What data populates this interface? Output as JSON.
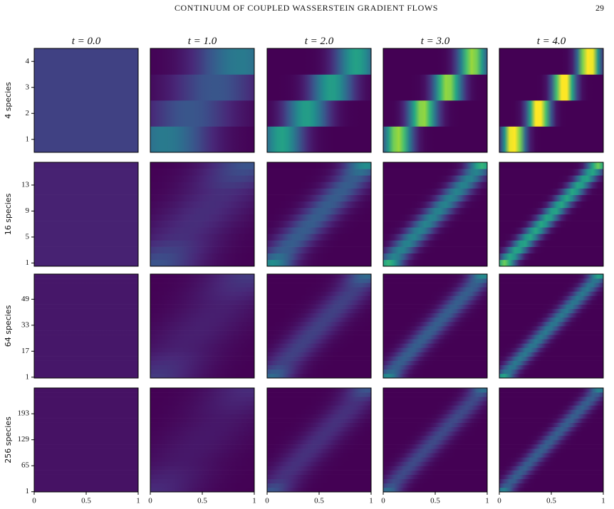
{
  "header": {
    "title": "CONTINUUM OF COUPLED WASSERSTEIN GRADIENT FLOWS",
    "page": "29"
  },
  "figure": {
    "columns": [
      "t = 0.0",
      "t = 1.0",
      "t = 2.0",
      "t = 3.0",
      "t = 4.0"
    ],
    "rows": [
      {
        "label": "4 species",
        "ylim": [
          0.5,
          4.5
        ],
        "yticks": [
          1,
          2,
          3,
          4
        ]
      },
      {
        "label": "16 species",
        "ylim": [
          0.5,
          16.5
        ],
        "yticks": [
          1,
          5,
          9,
          13
        ]
      },
      {
        "label": "64 species",
        "ylim": [
          0.5,
          64.5
        ],
        "yticks": [
          1,
          17,
          33,
          49
        ]
      },
      {
        "label": "256 species",
        "ylim": [
          0.5,
          256.5
        ],
        "yticks": [
          1,
          65,
          129,
          193
        ]
      }
    ],
    "xlim": [
      0,
      1
    ],
    "xticks": [
      0,
      0.5,
      1
    ]
  }
}
